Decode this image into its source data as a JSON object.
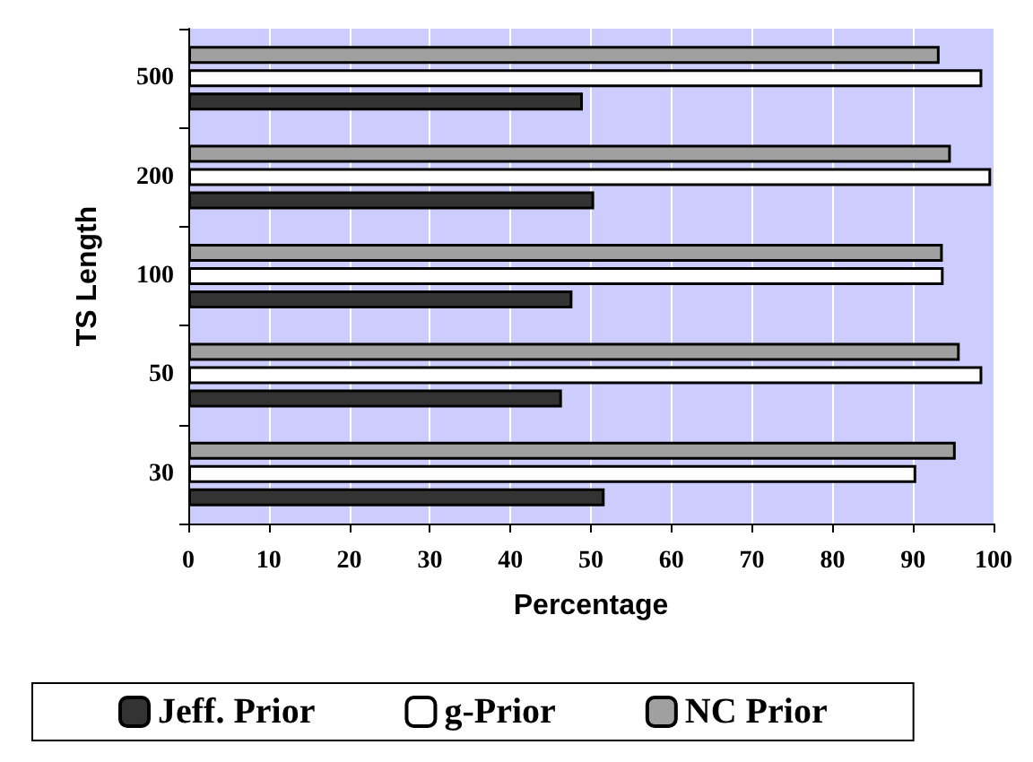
{
  "chart_data": {
    "type": "bar",
    "orientation": "horizontal",
    "xlabel": "Percentage",
    "ylabel": "TS Length",
    "categories": [
      "500",
      "200",
      "100",
      "50",
      "30"
    ],
    "series": [
      {
        "name": "Jeff. Prior",
        "color": "#333333",
        "values": [
          49.0,
          50.4,
          47.7,
          46.4,
          51.7
        ]
      },
      {
        "name": "g-Prior",
        "color": "#ffffff",
        "values": [
          98.6,
          99.7,
          93.8,
          98.6,
          90.4
        ]
      },
      {
        "name": "NC Prior",
        "color": "#a0a0a0",
        "values": [
          93.3,
          94.7,
          93.7,
          95.8,
          95.3
        ]
      }
    ],
    "xlim": [
      0,
      100
    ],
    "xticks": [
      0,
      10,
      20,
      30,
      40,
      50,
      60,
      70,
      80,
      90,
      100
    ],
    "grid": "x",
    "legend": "bottom"
  }
}
